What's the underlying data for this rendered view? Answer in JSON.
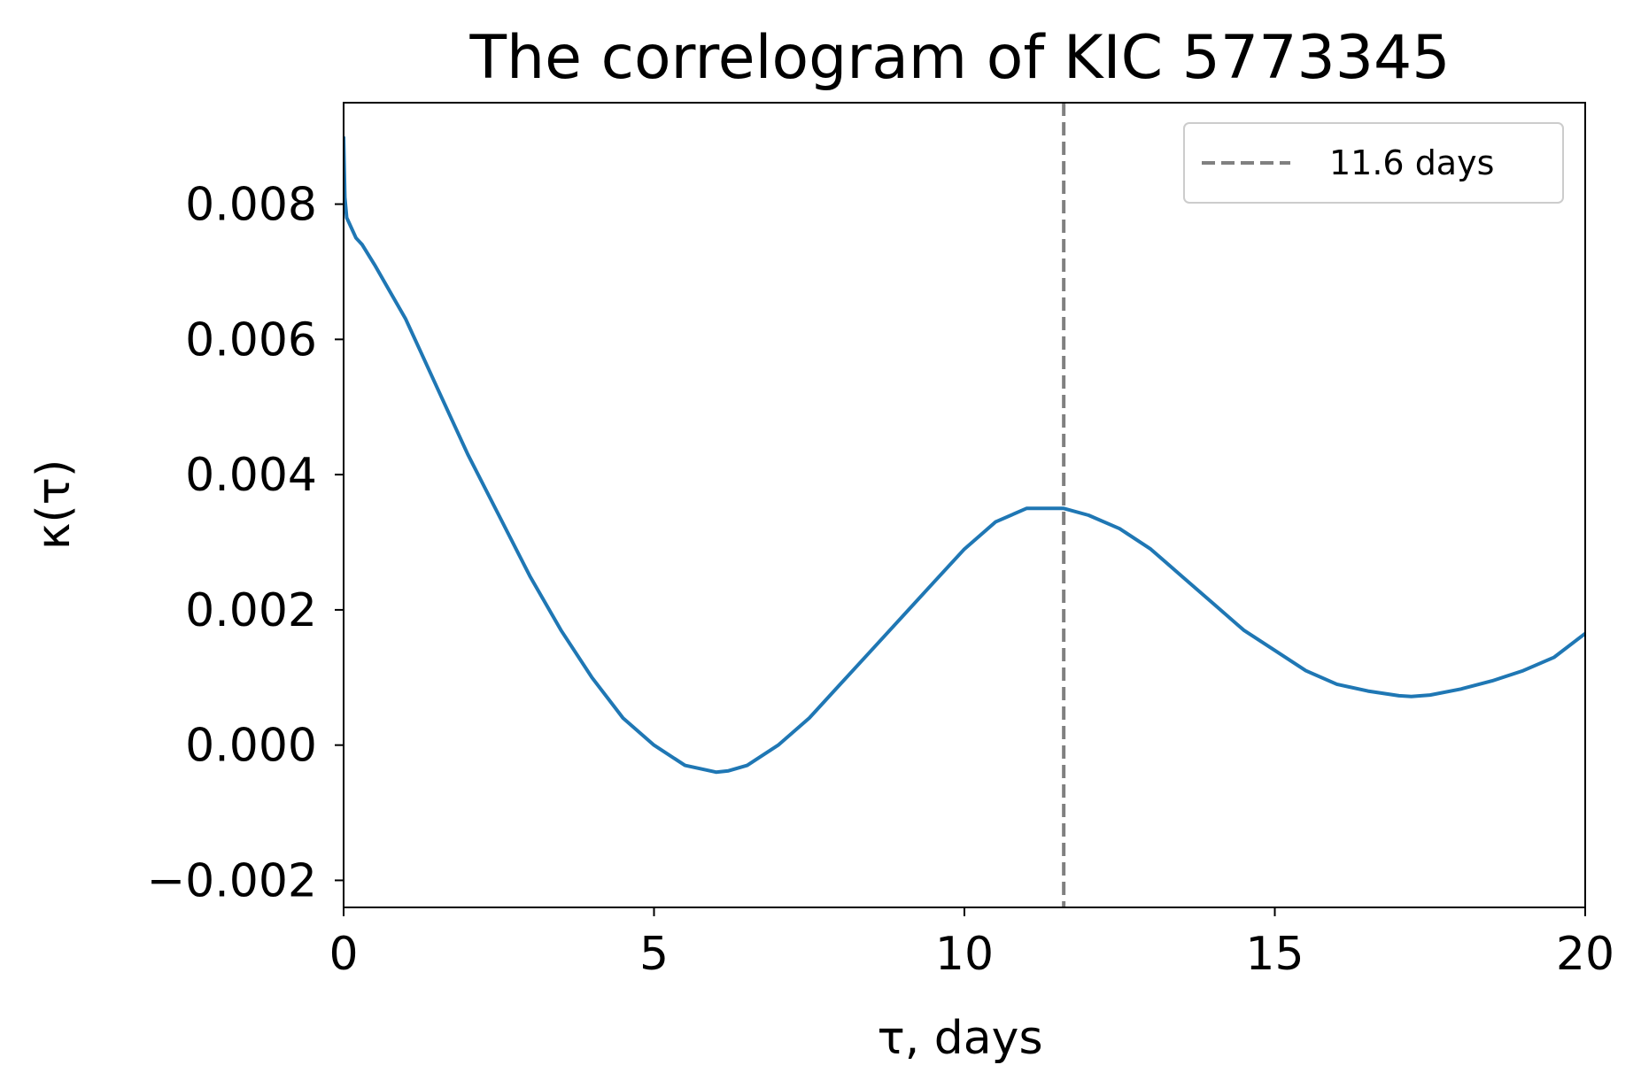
{
  "chart_data": {
    "type": "line",
    "title": "The correlogram of KIC 5773345",
    "xlabel": "τ, days",
    "ylabel": "κ(τ)",
    "xlim": [
      0,
      20
    ],
    "ylim": [
      -0.0024,
      0.0095
    ],
    "xticks": [
      0,
      5,
      10,
      15,
      20
    ],
    "xtick_labels": [
      "0",
      "5",
      "10",
      "15",
      "20"
    ],
    "yticks": [
      -0.002,
      0.0,
      0.002,
      0.004,
      0.006,
      0.008
    ],
    "ytick_labels": [
      "−0.002",
      "0.000",
      "0.002",
      "0.004",
      "0.006",
      "0.008"
    ],
    "grid": false,
    "legend": {
      "position": "top-right",
      "entries": [
        {
          "label": "11.6 days",
          "style": "dashed",
          "color": "#808080"
        }
      ]
    },
    "vline": {
      "x": 11.6,
      "color": "#808080",
      "style": "dashed"
    },
    "series": [
      {
        "color": "#1f77b4",
        "x": [
          0,
          0.02,
          0.05,
          0.1,
          0.2,
          0.3,
          0.5,
          0.75,
          1.0,
          1.25,
          1.5,
          2.0,
          2.5,
          3.0,
          3.5,
          4.0,
          4.5,
          5.0,
          5.5,
          6.0,
          6.2,
          6.5,
          7.0,
          7.5,
          8.0,
          8.5,
          9.0,
          9.5,
          10.0,
          10.5,
          11.0,
          11.5,
          11.6,
          12.0,
          12.5,
          13.0,
          13.5,
          14.0,
          14.5,
          15.0,
          15.5,
          16.0,
          16.5,
          17.0,
          17.2,
          17.5,
          18.0,
          18.5,
          19.0,
          19.5,
          20.0
        ],
        "y": [
          0.009,
          0.0081,
          0.0078,
          0.0077,
          0.0075,
          0.0074,
          0.0071,
          0.0067,
          0.0063,
          0.0058,
          0.0053,
          0.0043,
          0.0034,
          0.0025,
          0.0017,
          0.001,
          0.0004,
          0.0,
          -0.0003,
          -0.0004,
          -0.00038,
          -0.0003,
          0.0,
          0.0004,
          0.0009,
          0.0014,
          0.0019,
          0.0024,
          0.0029,
          0.0033,
          0.0035,
          0.0035,
          0.0035,
          0.0034,
          0.0032,
          0.0029,
          0.0025,
          0.0021,
          0.0017,
          0.0014,
          0.0011,
          0.0009,
          0.0008,
          0.00073,
          0.00072,
          0.00074,
          0.00083,
          0.00095,
          0.0011,
          0.0013,
          0.00165
        ]
      }
    ]
  }
}
